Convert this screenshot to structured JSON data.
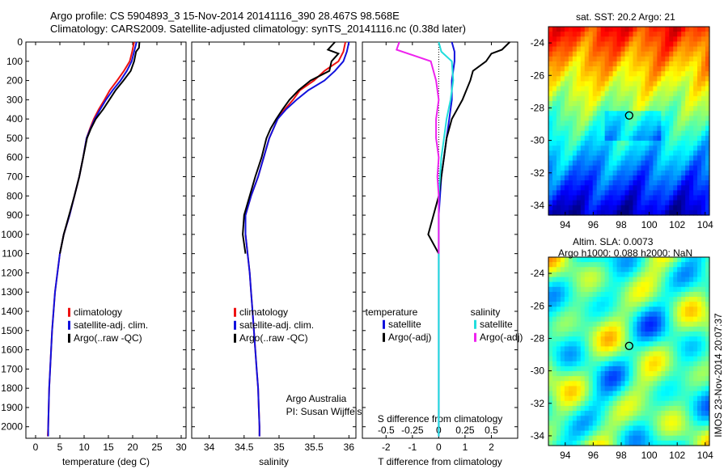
{
  "header": {
    "title_line1": "Argo profile: CS 5904893_3 15-Nov-2014 20141116_390 28.467S 98.568E",
    "title_line2": "Climatology: CARS2009. Satellite-adjusted climatology: synTS_20141116.nc (0.38d later)"
  },
  "colors": {
    "climatology": "#ee1111",
    "satellite": "#1111dd",
    "argo": "#000000",
    "sal_satellite": "#22dddd",
    "sal_argo": "#ee22ee"
  },
  "depth_axis": {
    "ticks": [
      0,
      100,
      200,
      300,
      400,
      500,
      600,
      700,
      800,
      900,
      1000,
      1100,
      1200,
      1300,
      1400,
      1500,
      1600,
      1700,
      1800,
      1900,
      2000
    ],
    "range": [
      0,
      2060
    ]
  },
  "chart_data": [
    {
      "type": "line",
      "panel": "temperature",
      "xlabel": "temperature (deg C)",
      "xticks": [
        0,
        5,
        10,
        15,
        20,
        25,
        30
      ],
      "xlim": [
        -2,
        31
      ],
      "legend": [
        "climatology",
        "satellite-adj. clim.",
        "Argo(..raw -QC)"
      ],
      "series": [
        {
          "name": "climatology",
          "color": "#ee1111",
          "points": [
            [
              20.3,
              0
            ],
            [
              19.9,
              50
            ],
            [
              19.4,
              100
            ],
            [
              18.2,
              150
            ],
            [
              16.8,
              200
            ],
            [
              15.3,
              250
            ],
            [
              14.2,
              300
            ],
            [
              13.0,
              350
            ],
            [
              12.0,
              400
            ],
            [
              11.2,
              450
            ],
            [
              10.5,
              500
            ],
            [
              9.8,
              600
            ],
            [
              9.0,
              700
            ],
            [
              8.0,
              800
            ],
            [
              7.0,
              900
            ],
            [
              5.8,
              1000
            ],
            [
              5.0,
              1100
            ],
            [
              4.5,
              1200
            ],
            [
              4.0,
              1300
            ],
            [
              3.7,
              1400
            ],
            [
              3.4,
              1500
            ],
            [
              3.2,
              1600
            ],
            [
              3.0,
              1700
            ],
            [
              2.8,
              1800
            ],
            [
              2.7,
              1900
            ],
            [
              2.6,
              2000
            ],
            [
              2.5,
              2050
            ]
          ]
        },
        {
          "name": "satellite-adj. clim.",
          "color": "#1111dd",
          "points": [
            [
              20.8,
              0
            ],
            [
              20.3,
              50
            ],
            [
              19.8,
              100
            ],
            [
              18.8,
              150
            ],
            [
              17.5,
              200
            ],
            [
              15.9,
              250
            ],
            [
              14.5,
              300
            ],
            [
              13.3,
              350
            ],
            [
              12.2,
              400
            ],
            [
              11.3,
              450
            ],
            [
              10.5,
              500
            ],
            [
              9.8,
              600
            ],
            [
              9.0,
              700
            ],
            [
              8.0,
              800
            ],
            [
              7.0,
              900
            ],
            [
              5.8,
              1000
            ],
            [
              5.0,
              1100
            ],
            [
              4.5,
              1200
            ],
            [
              4.0,
              1300
            ],
            [
              3.7,
              1400
            ],
            [
              3.4,
              1500
            ],
            [
              3.2,
              1600
            ],
            [
              3.0,
              1700
            ],
            [
              2.8,
              1800
            ],
            [
              2.7,
              1900
            ],
            [
              2.6,
              2000
            ],
            [
              2.6,
              2050
            ]
          ]
        },
        {
          "name": "Argo(..raw -QC)",
          "color": "#000000",
          "points": [
            [
              21.4,
              0
            ],
            [
              21.3,
              30
            ],
            [
              20.7,
              50
            ],
            [
              20.3,
              100
            ],
            [
              19.6,
              150
            ],
            [
              18.1,
              200
            ],
            [
              16.5,
              250
            ],
            [
              15.2,
              300
            ],
            [
              13.9,
              350
            ],
            [
              12.4,
              400
            ],
            [
              11.4,
              450
            ],
            [
              10.6,
              500
            ],
            [
              9.8,
              600
            ],
            [
              9.0,
              700
            ],
            [
              8.0,
              800
            ],
            [
              6.9,
              900
            ],
            [
              5.8,
              1000
            ],
            [
              5.0,
              1100
            ]
          ]
        }
      ]
    },
    {
      "type": "line",
      "panel": "salinity",
      "xlabel": "salinity",
      "xticks": [
        34,
        34.5,
        35,
        35.5,
        36
      ],
      "xlim": [
        33.75,
        36.1
      ],
      "legend": [
        "climatology",
        "satellite-adj. clim.",
        "Argo(..raw -QC)"
      ],
      "annotation": [
        "Argo Australia",
        "PI: Susan Wijffels"
      ],
      "series": [
        {
          "name": "climatology",
          "color": "#ee1111",
          "points": [
            [
              35.95,
              0
            ],
            [
              35.92,
              50
            ],
            [
              35.85,
              100
            ],
            [
              35.65,
              150
            ],
            [
              35.5,
              200
            ],
            [
              35.3,
              250
            ],
            [
              35.2,
              300
            ],
            [
              35.08,
              350
            ],
            [
              34.98,
              400
            ],
            [
              34.92,
              450
            ],
            [
              34.86,
              500
            ],
            [
              34.78,
              600
            ],
            [
              34.7,
              700
            ],
            [
              34.6,
              800
            ],
            [
              34.52,
              900
            ],
            [
              34.52,
              1000
            ],
            [
              34.55,
              1100
            ],
            [
              34.58,
              1200
            ],
            [
              34.6,
              1300
            ],
            [
              34.62,
              1400
            ],
            [
              34.64,
              1500
            ],
            [
              34.66,
              1600
            ],
            [
              34.68,
              1700
            ],
            [
              34.7,
              1800
            ],
            [
              34.71,
              1900
            ],
            [
              34.72,
              2000
            ],
            [
              34.72,
              2050
            ]
          ]
        },
        {
          "name": "satellite-adj. clim.",
          "color": "#1111dd",
          "points": [
            [
              36.0,
              0
            ],
            [
              35.97,
              50
            ],
            [
              35.92,
              100
            ],
            [
              35.8,
              150
            ],
            [
              35.65,
              200
            ],
            [
              35.42,
              250
            ],
            [
              35.25,
              300
            ],
            [
              35.1,
              350
            ],
            [
              34.98,
              400
            ],
            [
              34.92,
              450
            ],
            [
              34.86,
              500
            ],
            [
              34.78,
              600
            ],
            [
              34.7,
              700
            ],
            [
              34.6,
              800
            ],
            [
              34.52,
              900
            ],
            [
              34.52,
              1000
            ],
            [
              34.55,
              1100
            ],
            [
              34.58,
              1200
            ],
            [
              34.6,
              1300
            ],
            [
              34.62,
              1400
            ],
            [
              34.64,
              1500
            ],
            [
              34.66,
              1600
            ],
            [
              34.68,
              1700
            ],
            [
              34.7,
              1800
            ],
            [
              34.71,
              1900
            ],
            [
              34.72,
              2000
            ],
            [
              34.72,
              2050
            ]
          ]
        },
        {
          "name": "Argo(..raw -QC)",
          "color": "#000000",
          "points": [
            [
              35.8,
              0
            ],
            [
              35.7,
              40
            ],
            [
              35.85,
              60
            ],
            [
              35.75,
              100
            ],
            [
              35.72,
              150
            ],
            [
              35.45,
              200
            ],
            [
              35.28,
              250
            ],
            [
              35.15,
              300
            ],
            [
              35.05,
              350
            ],
            [
              34.96,
              400
            ],
            [
              34.88,
              450
            ],
            [
              34.82,
              500
            ],
            [
              34.75,
              600
            ],
            [
              34.66,
              700
            ],
            [
              34.58,
              800
            ],
            [
              34.5,
              900
            ],
            [
              34.48,
              1000
            ],
            [
              34.52,
              1100
            ]
          ]
        }
      ]
    },
    {
      "type": "line",
      "panel": "difference",
      "xlabel": "T difference from climatology",
      "xlabel_top": "S difference from climatology",
      "xticks": [
        -2,
        -1,
        0,
        1,
        2
      ],
      "xticks_top": [
        "-0.5",
        "-0.25",
        "0",
        "0.25",
        "0.5"
      ],
      "xlim": [
        -2.9,
        3.0
      ],
      "legend_headers": [
        "temperature",
        "salinity"
      ],
      "legend": [
        "satellite",
        "Argo(-adj)",
        "satellite",
        "Argo(-adj)"
      ],
      "series": [
        {
          "name": "satellite",
          "color": "#1111dd",
          "points": [
            [
              0.5,
              0
            ],
            [
              0.6,
              50
            ],
            [
              0.6,
              100
            ],
            [
              0.5,
              200
            ],
            [
              0.5,
              300
            ],
            [
              0.4,
              400
            ],
            [
              0.3,
              500
            ],
            [
              0.2,
              600
            ],
            [
              0.1,
              700
            ],
            [
              0.05,
              800
            ],
            [
              0,
              900
            ],
            [
              0,
              1000
            ],
            [
              0,
              1200
            ],
            [
              0,
              1500
            ],
            [
              0,
              2050
            ]
          ]
        },
        {
          "name": "Argo(-adj)",
          "color": "#000000",
          "points": [
            [
              2.7,
              0
            ],
            [
              2.4,
              40
            ],
            [
              2.0,
              60
            ],
            [
              1.8,
              100
            ],
            [
              1.3,
              150
            ],
            [
              1.2,
              200
            ],
            [
              0.9,
              300
            ],
            [
              0.5,
              400
            ],
            [
              0.3,
              500
            ],
            [
              0.2,
              600
            ],
            [
              0.1,
              700
            ],
            [
              0,
              800
            ],
            [
              -0.2,
              900
            ],
            [
              -0.4,
              1000
            ],
            [
              0,
              1100
            ]
          ]
        },
        {
          "name": "satellite",
          "color": "#22dddd",
          "points": [
            [
              0,
              0
            ],
            [
              0.1,
              50
            ],
            [
              0.5,
              100
            ],
            [
              0.55,
              200
            ],
            [
              0.45,
              300
            ],
            [
              0.3,
              400
            ],
            [
              0.2,
              500
            ],
            [
              0.1,
              600
            ],
            [
              0.05,
              700
            ],
            [
              0,
              800
            ],
            [
              0,
              1000
            ],
            [
              0,
              2050
            ]
          ]
        },
        {
          "name": "Argo(-adj)",
          "color": "#ee22ee",
          "points": [
            [
              -1.5,
              0
            ],
            [
              -1.6,
              40
            ],
            [
              -0.3,
              100
            ],
            [
              -0.1,
              200
            ],
            [
              0,
              300
            ],
            [
              -0.1,
              400
            ],
            [
              -0.1,
              500
            ],
            [
              0,
              600
            ],
            [
              -0.05,
              700
            ],
            [
              0,
              800
            ],
            [
              0,
              1100
            ]
          ]
        }
      ]
    },
    {
      "type": "heatmap",
      "panel": "sst_map",
      "title": "sat. SST: 20.2 Argo: 21",
      "xticks": [
        94,
        96,
        98,
        100,
        102,
        104
      ],
      "yticks": [
        -24,
        -26,
        -28,
        -30,
        -32,
        -34
      ],
      "xlim": [
        92.8,
        104.3
      ],
      "ylim": [
        -34.6,
        -23.0
      ],
      "marker": [
        98.568,
        -28.467
      ]
    },
    {
      "type": "heatmap",
      "panel": "sla_map",
      "title": "Altim. SLA: 0.0073",
      "subtitle": "Argo h1000: 0.088 h2000: NaN",
      "xticks": [
        94,
        96,
        98,
        100,
        102,
        104
      ],
      "yticks": [
        -24,
        -26,
        -28,
        -30,
        -32,
        -34
      ],
      "xlim": [
        92.8,
        104.3
      ],
      "ylim": [
        -34.6,
        -23.0
      ],
      "marker": [
        98.568,
        -28.467
      ]
    }
  ],
  "watermark": "IMOS 23-Nov-2014 20:07:37"
}
